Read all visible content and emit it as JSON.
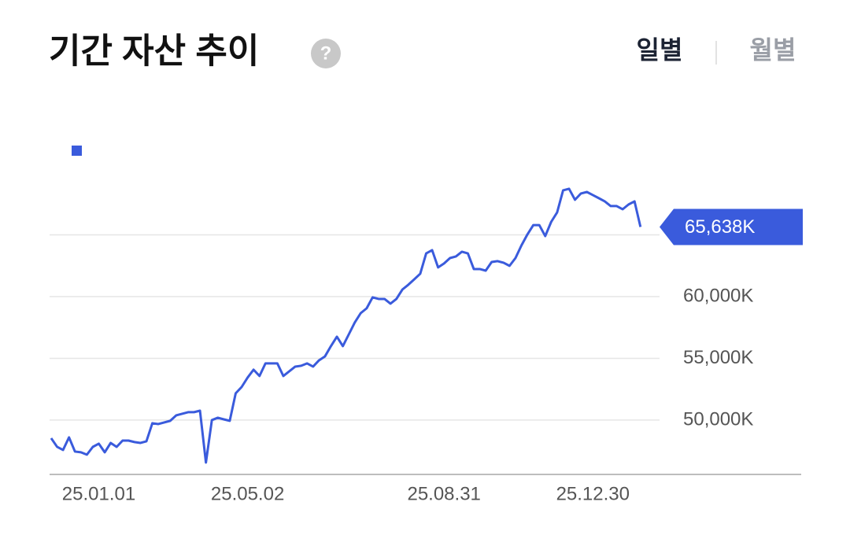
{
  "chart_data": {
    "type": "line",
    "title": "기간 자산 추이",
    "series": [
      {
        "color": "#3a5bdc",
        "values": [
          48535,
          47834,
          47580,
          48600,
          47452,
          47390,
          47200,
          47830,
          48090,
          47390,
          48150,
          47830,
          48340,
          48340,
          48220,
          48150,
          48280,
          49745,
          49680,
          49810,
          49940,
          50380,
          50510,
          50640,
          50640,
          50760,
          46560,
          50000,
          50190,
          50060,
          49940,
          52170,
          52680,
          53440,
          54080,
          53570,
          54590,
          54590,
          54590,
          53570,
          53950,
          54330,
          54400,
          54590,
          54330,
          54840,
          55160,
          55990,
          56750,
          55990,
          56940,
          57900,
          58660,
          59050,
          59940,
          59810,
          59810,
          59430,
          59810,
          60570,
          60960,
          61400,
          61850,
          63500,
          63760,
          62360,
          62680,
          63120,
          63250,
          63630,
          63500,
          62230,
          62230,
          62100,
          62800,
          62870,
          62740,
          62490,
          63120,
          64140,
          65030,
          65790,
          65790,
          64900,
          66050,
          66820,
          68600,
          68730,
          67840,
          68350,
          68470,
          68220,
          67970,
          67710,
          67330,
          67330,
          67070,
          67460,
          67710,
          65638
        ]
      }
    ],
    "xlim": [
      0,
      126
    ],
    "xticks": [
      {
        "value": 8,
        "label": "25.01.01"
      },
      {
        "value": 33,
        "label": "25.05.02"
      },
      {
        "value": 66,
        "label": "25.08.31"
      },
      {
        "value": 91,
        "label": "25.12.30"
      }
    ],
    "ylim": [
      45600,
      70000
    ],
    "yticks": [
      {
        "value": 50000,
        "label": "50,000K"
      },
      {
        "value": 55000,
        "label": "55,000K"
      },
      {
        "value": 60000,
        "label": "60,000K"
      },
      {
        "value": 65000,
        "label": null
      }
    ],
    "grid": true,
    "current": {
      "value": 65638,
      "label": "65,638K"
    }
  },
  "tabs": [
    "일별",
    "월별"
  ]
}
